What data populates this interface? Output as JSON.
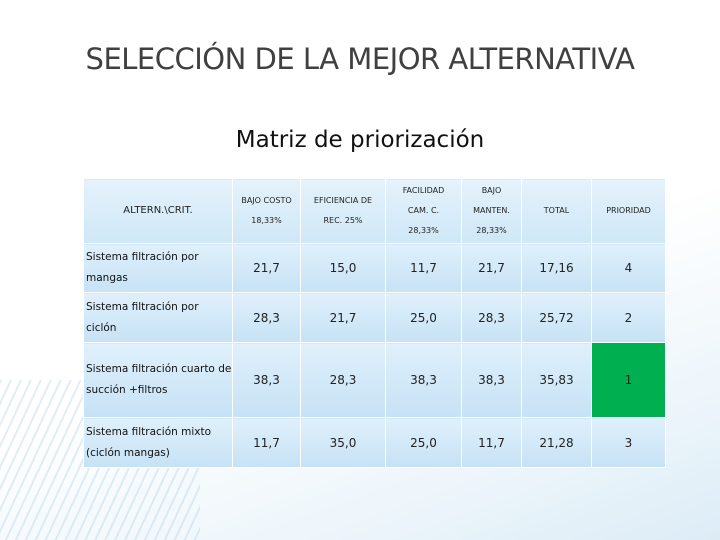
{
  "title": "SELECCIÓN DE LA MEJOR ALTERNATIVA",
  "subtitle": "Matriz de priorización",
  "table": {
    "header": [
      [
        "ALTERN.\\CRIT."
      ],
      [
        "BAJO COSTO",
        "18,33%"
      ],
      [
        "EFICIENCIA DE",
        "REC. 25%"
      ],
      [
        "FACILIDAD",
        "CAM. C.",
        "28,33%"
      ],
      [
        "BAJO",
        "MANTEN.",
        "28,33%"
      ],
      [
        "TOTAL"
      ],
      [
        "PRIORIDAD"
      ]
    ],
    "rows": [
      [
        "Sistema filtración por mangas",
        "21,7",
        "15,0",
        "11,7",
        "21,7",
        "17,16",
        "4"
      ],
      [
        "Sistema filtración por ciclón",
        "28,3",
        "21,7",
        "25,0",
        "28,3",
        "25,72",
        "2"
      ],
      [
        "Sistema filtración cuarto de succión +filtros",
        "38,3",
        "28,3",
        "38,3",
        "38,3",
        "35,83",
        "1"
      ],
      [
        "Sistema filtración mixto (ciclón mangas)",
        "11,7",
        "35,0",
        "25,0",
        "11,7",
        "21,28",
        "3"
      ]
    ],
    "highlight": {
      "row": 2,
      "column": 6,
      "color": "#00b050"
    }
  }
}
